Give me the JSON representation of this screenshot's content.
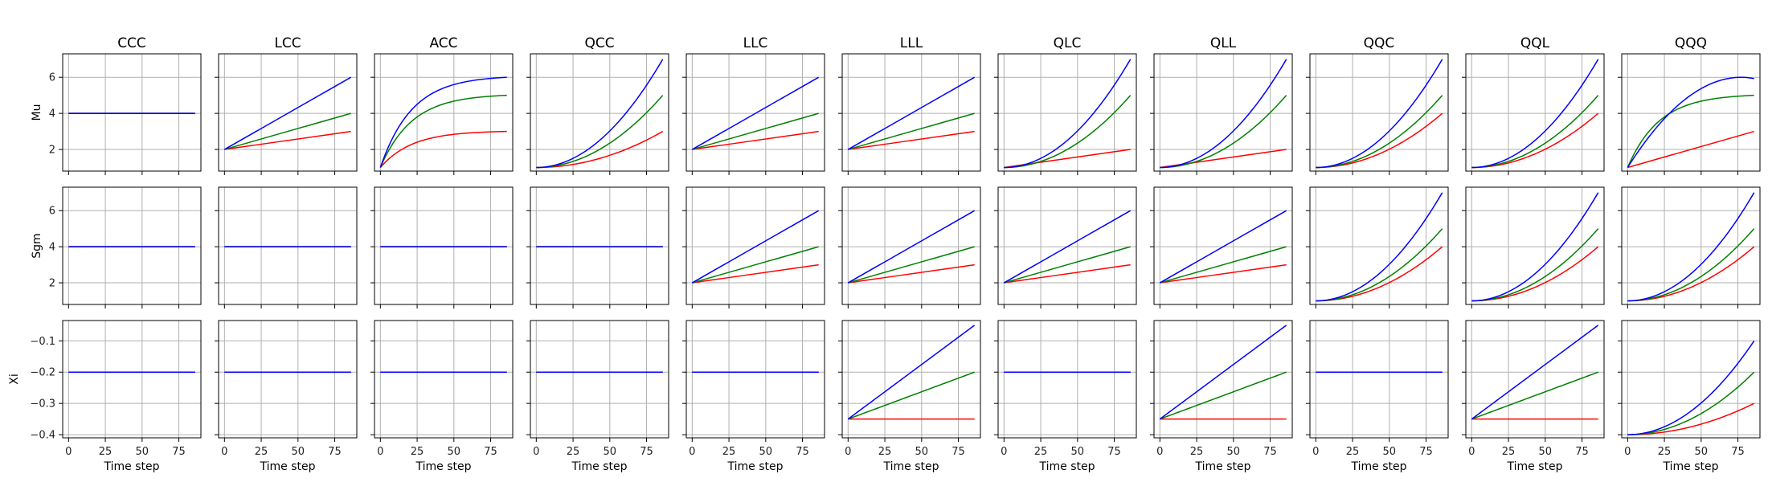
{
  "chart_data": {
    "type": "line",
    "layout": {
      "rows": 3,
      "cols": 11
    },
    "row_labels": [
      "Mu",
      "Sgm",
      "Xi"
    ],
    "column_titles": [
      "CCC",
      "LCC",
      "ACC",
      "QCC",
      "LLC",
      "LLL",
      "QLC",
      "QLL",
      "QQC",
      "QQL",
      "QQQ"
    ],
    "xlabel": "Time step",
    "x_ticks": [
      0,
      25,
      50,
      75
    ],
    "xlim": [
      -4,
      90
    ],
    "x_range": [
      0,
      86
    ],
    "row_axes": [
      {
        "ylim": [
          0.8,
          7.3
        ],
        "yticks": [
          2,
          4,
          6
        ],
        "tick_labels": [
          "2",
          "4",
          "6"
        ]
      },
      {
        "ylim": [
          0.8,
          7.3
        ],
        "yticks": [
          2,
          4,
          6
        ],
        "tick_labels": [
          "2",
          "4",
          "6"
        ]
      },
      {
        "ylim": [
          -0.41,
          -0.035
        ],
        "yticks": [
          -0.4,
          -0.3,
          -0.2,
          -0.1
        ],
        "tick_labels": [
          "−0.4",
          "−0.3",
          "−0.2",
          "−0.1"
        ]
      }
    ],
    "series_colors": {
      "blue": "#0000ff",
      "green": "#008000",
      "red": "#ff0000"
    },
    "grid": true,
    "series_note": "Each line given as start value, end value and shape (constant, linear, quadratic convex, saturating concave, rising-then-flattening)",
    "panels": [
      [
        {
          "lines": [
            {
              "color": "red",
              "start": 4,
              "end": 4,
              "shape": "const"
            },
            {
              "color": "green",
              "start": 4,
              "end": 4,
              "shape": "const"
            },
            {
              "color": "blue",
              "start": 4,
              "end": 4,
              "shape": "const"
            }
          ]
        },
        {
          "lines": [
            {
              "color": "red",
              "start": 2,
              "end": 3,
              "shape": "lin"
            },
            {
              "color": "green",
              "start": 2,
              "end": 4,
              "shape": "lin"
            },
            {
              "color": "blue",
              "start": 2,
              "end": 6,
              "shape": "lin"
            }
          ]
        },
        {
          "lines": [
            {
              "color": "red",
              "start": 1,
              "end": 3,
              "shape": "sat"
            },
            {
              "color": "green",
              "start": 1,
              "end": 5,
              "shape": "sat"
            },
            {
              "color": "blue",
              "start": 1,
              "end": 6,
              "shape": "sat"
            }
          ]
        },
        {
          "lines": [
            {
              "color": "red",
              "start": 1,
              "end": 3,
              "shape": "quad"
            },
            {
              "color": "green",
              "start": 1,
              "end": 5,
              "shape": "quad"
            },
            {
              "color": "blue",
              "start": 1,
              "end": 7,
              "shape": "quad"
            }
          ]
        },
        {
          "lines": [
            {
              "color": "red",
              "start": 2,
              "end": 3,
              "shape": "lin"
            },
            {
              "color": "green",
              "start": 2,
              "end": 4,
              "shape": "lin"
            },
            {
              "color": "blue",
              "start": 2,
              "end": 6,
              "shape": "lin"
            }
          ]
        },
        {
          "lines": [
            {
              "color": "red",
              "start": 2,
              "end": 3,
              "shape": "lin"
            },
            {
              "color": "green",
              "start": 2,
              "end": 4,
              "shape": "lin"
            },
            {
              "color": "blue",
              "start": 2,
              "end": 6,
              "shape": "lin"
            }
          ]
        },
        {
          "lines": [
            {
              "color": "red",
              "start": 1,
              "end": 2,
              "shape": "lin"
            },
            {
              "color": "green",
              "start": 1,
              "end": 5,
              "shape": "quad"
            },
            {
              "color": "blue",
              "start": 1,
              "end": 7,
              "shape": "quad"
            }
          ]
        },
        {
          "lines": [
            {
              "color": "red",
              "start": 1,
              "end": 2,
              "shape": "lin"
            },
            {
              "color": "green",
              "start": 1,
              "end": 5,
              "shape": "quad"
            },
            {
              "color": "blue",
              "start": 1,
              "end": 7,
              "shape": "quad"
            }
          ]
        },
        {
          "lines": [
            {
              "color": "red",
              "start": 1,
              "end": 4,
              "shape": "quad"
            },
            {
              "color": "green",
              "start": 1,
              "end": 5,
              "shape": "quad"
            },
            {
              "color": "blue",
              "start": 1,
              "end": 7,
              "shape": "quad"
            }
          ]
        },
        {
          "lines": [
            {
              "color": "red",
              "start": 1,
              "end": 4,
              "shape": "quad"
            },
            {
              "color": "green",
              "start": 1,
              "end": 5,
              "shape": "quad"
            },
            {
              "color": "blue",
              "start": 1,
              "end": 7,
              "shape": "quad"
            }
          ]
        },
        {
          "lines": [
            {
              "color": "red",
              "start": 1,
              "end": 3,
              "shape": "lin"
            },
            {
              "color": "green",
              "start": 1,
              "end": 5,
              "shape": "sat"
            },
            {
              "color": "blue",
              "start": 1,
              "end": 6,
              "shape": "peak"
            }
          ]
        }
      ],
      [
        {
          "lines": [
            {
              "color": "red",
              "start": 4,
              "end": 4,
              "shape": "const"
            },
            {
              "color": "green",
              "start": 4,
              "end": 4,
              "shape": "const"
            },
            {
              "color": "blue",
              "start": 4,
              "end": 4,
              "shape": "const"
            }
          ]
        },
        {
          "lines": [
            {
              "color": "red",
              "start": 4,
              "end": 4,
              "shape": "const"
            },
            {
              "color": "green",
              "start": 4,
              "end": 4,
              "shape": "const"
            },
            {
              "color": "blue",
              "start": 4,
              "end": 4,
              "shape": "const"
            }
          ]
        },
        {
          "lines": [
            {
              "color": "red",
              "start": 4,
              "end": 4,
              "shape": "const"
            },
            {
              "color": "green",
              "start": 4,
              "end": 4,
              "shape": "const"
            },
            {
              "color": "blue",
              "start": 4,
              "end": 4,
              "shape": "const"
            }
          ]
        },
        {
          "lines": [
            {
              "color": "red",
              "start": 4,
              "end": 4,
              "shape": "const"
            },
            {
              "color": "green",
              "start": 4,
              "end": 4,
              "shape": "const"
            },
            {
              "color": "blue",
              "start": 4,
              "end": 4,
              "shape": "const"
            }
          ]
        },
        {
          "lines": [
            {
              "color": "red",
              "start": 2,
              "end": 3,
              "shape": "lin"
            },
            {
              "color": "green",
              "start": 2,
              "end": 4,
              "shape": "lin"
            },
            {
              "color": "blue",
              "start": 2,
              "end": 6,
              "shape": "lin"
            }
          ]
        },
        {
          "lines": [
            {
              "color": "red",
              "start": 2,
              "end": 3,
              "shape": "lin"
            },
            {
              "color": "green",
              "start": 2,
              "end": 4,
              "shape": "lin"
            },
            {
              "color": "blue",
              "start": 2,
              "end": 6,
              "shape": "lin"
            }
          ]
        },
        {
          "lines": [
            {
              "color": "red",
              "start": 2,
              "end": 3,
              "shape": "lin"
            },
            {
              "color": "green",
              "start": 2,
              "end": 4,
              "shape": "lin"
            },
            {
              "color": "blue",
              "start": 2,
              "end": 6,
              "shape": "lin"
            }
          ]
        },
        {
          "lines": [
            {
              "color": "red",
              "start": 2,
              "end": 3,
              "shape": "lin"
            },
            {
              "color": "green",
              "start": 2,
              "end": 4,
              "shape": "lin"
            },
            {
              "color": "blue",
              "start": 2,
              "end": 6,
              "shape": "lin"
            }
          ]
        },
        {
          "lines": [
            {
              "color": "red",
              "start": 1,
              "end": 4,
              "shape": "quad"
            },
            {
              "color": "green",
              "start": 1,
              "end": 5,
              "shape": "quad"
            },
            {
              "color": "blue",
              "start": 1,
              "end": 7,
              "shape": "quad"
            }
          ]
        },
        {
          "lines": [
            {
              "color": "red",
              "start": 1,
              "end": 4,
              "shape": "quad"
            },
            {
              "color": "green",
              "start": 1,
              "end": 5,
              "shape": "quad"
            },
            {
              "color": "blue",
              "start": 1,
              "end": 7,
              "shape": "quad"
            }
          ]
        },
        {
          "lines": [
            {
              "color": "red",
              "start": 1,
              "end": 4,
              "shape": "quad"
            },
            {
              "color": "green",
              "start": 1,
              "end": 5,
              "shape": "quad"
            },
            {
              "color": "blue",
              "start": 1,
              "end": 7,
              "shape": "quad"
            }
          ]
        }
      ],
      [
        {
          "lines": [
            {
              "color": "red",
              "start": -0.2,
              "end": -0.2,
              "shape": "const"
            },
            {
              "color": "green",
              "start": -0.2,
              "end": -0.2,
              "shape": "const"
            },
            {
              "color": "blue",
              "start": -0.2,
              "end": -0.2,
              "shape": "const"
            }
          ]
        },
        {
          "lines": [
            {
              "color": "red",
              "start": -0.2,
              "end": -0.2,
              "shape": "const"
            },
            {
              "color": "green",
              "start": -0.2,
              "end": -0.2,
              "shape": "const"
            },
            {
              "color": "blue",
              "start": -0.2,
              "end": -0.2,
              "shape": "const"
            }
          ]
        },
        {
          "lines": [
            {
              "color": "red",
              "start": -0.2,
              "end": -0.2,
              "shape": "const"
            },
            {
              "color": "green",
              "start": -0.2,
              "end": -0.2,
              "shape": "const"
            },
            {
              "color": "blue",
              "start": -0.2,
              "end": -0.2,
              "shape": "const"
            }
          ]
        },
        {
          "lines": [
            {
              "color": "red",
              "start": -0.2,
              "end": -0.2,
              "shape": "const"
            },
            {
              "color": "green",
              "start": -0.2,
              "end": -0.2,
              "shape": "const"
            },
            {
              "color": "blue",
              "start": -0.2,
              "end": -0.2,
              "shape": "const"
            }
          ]
        },
        {
          "lines": [
            {
              "color": "red",
              "start": -0.2,
              "end": -0.2,
              "shape": "const"
            },
            {
              "color": "green",
              "start": -0.2,
              "end": -0.2,
              "shape": "const"
            },
            {
              "color": "blue",
              "start": -0.2,
              "end": -0.2,
              "shape": "const"
            }
          ]
        },
        {
          "lines": [
            {
              "color": "red",
              "start": -0.35,
              "end": -0.35,
              "shape": "const"
            },
            {
              "color": "green",
              "start": -0.35,
              "end": -0.2,
              "shape": "lin"
            },
            {
              "color": "blue",
              "start": -0.35,
              "end": -0.05,
              "shape": "lin"
            }
          ]
        },
        {
          "lines": [
            {
              "color": "red",
              "start": -0.2,
              "end": -0.2,
              "shape": "const"
            },
            {
              "color": "green",
              "start": -0.2,
              "end": -0.2,
              "shape": "const"
            },
            {
              "color": "blue",
              "start": -0.2,
              "end": -0.2,
              "shape": "const"
            }
          ]
        },
        {
          "lines": [
            {
              "color": "red",
              "start": -0.35,
              "end": -0.35,
              "shape": "const"
            },
            {
              "color": "green",
              "start": -0.35,
              "end": -0.2,
              "shape": "lin"
            },
            {
              "color": "blue",
              "start": -0.35,
              "end": -0.05,
              "shape": "lin"
            }
          ]
        },
        {
          "lines": [
            {
              "color": "red",
              "start": -0.2,
              "end": -0.2,
              "shape": "const"
            },
            {
              "color": "green",
              "start": -0.2,
              "end": -0.2,
              "shape": "const"
            },
            {
              "color": "blue",
              "start": -0.2,
              "end": -0.2,
              "shape": "const"
            }
          ]
        },
        {
          "lines": [
            {
              "color": "red",
              "start": -0.35,
              "end": -0.35,
              "shape": "const"
            },
            {
              "color": "green",
              "start": -0.35,
              "end": -0.2,
              "shape": "lin"
            },
            {
              "color": "blue",
              "start": -0.35,
              "end": -0.05,
              "shape": "lin"
            }
          ]
        },
        {
          "lines": [
            {
              "color": "red",
              "start": -0.4,
              "end": -0.3,
              "shape": "quad"
            },
            {
              "color": "green",
              "start": -0.4,
              "end": -0.2,
              "shape": "quad"
            },
            {
              "color": "blue",
              "start": -0.4,
              "end": -0.1,
              "shape": "quad"
            }
          ]
        }
      ]
    ]
  }
}
